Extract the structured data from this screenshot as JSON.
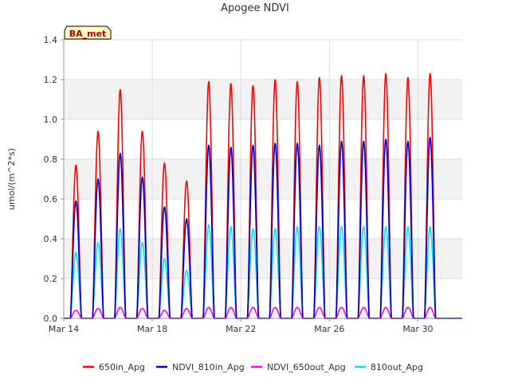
{
  "chart_data": {
    "type": "line",
    "title": "Apogee NDVI",
    "ylabel": "umol/(m^2*s)",
    "xlabel": "",
    "site_label": "BA_met",
    "ylim": [
      0,
      1.4
    ],
    "yticks": [
      "0.0",
      "0.2",
      "0.4",
      "0.6",
      "0.8",
      "1.0",
      "1.2",
      "1.4"
    ],
    "xlim": [
      14,
      32
    ],
    "xticks": [
      {
        "day": 14,
        "label": "Mar 14"
      },
      {
        "day": 18,
        "label": "Mar 18"
      },
      {
        "day": 22,
        "label": "Mar 22"
      },
      {
        "day": 26,
        "label": "Mar 26"
      },
      {
        "day": 30,
        "label": "Mar 30"
      }
    ],
    "grid": true,
    "legend_position": "bottom",
    "days": [
      14,
      15,
      16,
      17,
      18,
      19,
      20,
      21,
      22,
      23,
      24,
      25,
      26,
      27,
      28,
      29,
      30,
      31
    ],
    "series": [
      {
        "name": "650in_Apg",
        "color": "#ff0000",
        "daily_peaks": [
          0.77,
          0.94,
          1.15,
          0.94,
          0.78,
          0.69,
          1.19,
          1.18,
          1.17,
          1.2,
          1.19,
          1.21,
          1.22,
          1.22,
          1.23,
          1.21,
          1.23,
          0
        ]
      },
      {
        "name": "NDVI_810in_Apg",
        "color": "#0000cc",
        "daily_peaks": [
          0.59,
          0.7,
          0.83,
          0.71,
          0.56,
          0.5,
          0.87,
          0.86,
          0.87,
          0.88,
          0.88,
          0.87,
          0.89,
          0.89,
          0.9,
          0.89,
          0.91,
          0
        ]
      },
      {
        "name": "NDVI_650out_Apg",
        "color": "#ff00ff",
        "daily_peaks": [
          0.04,
          0.05,
          0.055,
          0.05,
          0.04,
          0.05,
          0.055,
          0.055,
          0.055,
          0.055,
          0.055,
          0.055,
          0.055,
          0.055,
          0.055,
          0.055,
          0.055,
          0
        ]
      },
      {
        "name": "810out_Apg",
        "color": "#00e5ee",
        "daily_peaks": [
          0.33,
          0.38,
          0.45,
          0.38,
          0.3,
          0.24,
          0.47,
          0.46,
          0.45,
          0.45,
          0.46,
          0.46,
          0.46,
          0.46,
          0.46,
          0.46,
          0.46,
          0
        ]
      }
    ]
  }
}
